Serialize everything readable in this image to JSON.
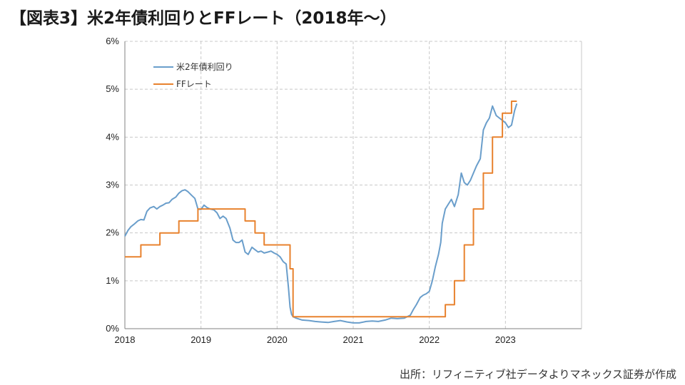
{
  "title": "【図表3】米2年債利回りとFFレート（2018年〜）",
  "source": "出所：リフィニティブ社データよりマネックス証券が作成",
  "colors": {
    "us2y": "#6a9ecb",
    "ff": "#e8822e",
    "grid": "#c8c8c8",
    "axis": "#808080"
  },
  "chart_data": {
    "type": "line",
    "title": "米2年債利回りとFFレート（2018年〜）",
    "xlabel": "",
    "ylabel": "",
    "xlim": [
      2018.0,
      2024.0
    ],
    "ylim": [
      0,
      6
    ],
    "x_ticks": [
      {
        "value": 2018,
        "label": "2018"
      },
      {
        "value": 2019,
        "label": "2019"
      },
      {
        "value": 2020,
        "label": "2020"
      },
      {
        "value": 2021,
        "label": "2021"
      },
      {
        "value": 2022,
        "label": "2022"
      },
      {
        "value": 2023,
        "label": "2023"
      }
    ],
    "y_ticks": [
      {
        "value": 0,
        "label": "0%"
      },
      {
        "value": 1,
        "label": "1%"
      },
      {
        "value": 2,
        "label": "2%"
      },
      {
        "value": 3,
        "label": "3%"
      },
      {
        "value": 4,
        "label": "4%"
      },
      {
        "value": 5,
        "label": "5%"
      },
      {
        "value": 6,
        "label": "6%"
      }
    ],
    "grid": true,
    "legend": "top-left",
    "series": [
      {
        "name": "米2年債利回り",
        "style": "line",
        "points": [
          [
            2018.0,
            1.93
          ],
          [
            2018.04,
            2.05
          ],
          [
            2018.08,
            2.13
          ],
          [
            2018.12,
            2.18
          ],
          [
            2018.17,
            2.25
          ],
          [
            2018.21,
            2.28
          ],
          [
            2018.25,
            2.27
          ],
          [
            2018.29,
            2.45
          ],
          [
            2018.33,
            2.52
          ],
          [
            2018.38,
            2.55
          ],
          [
            2018.42,
            2.5
          ],
          [
            2018.46,
            2.55
          ],
          [
            2018.5,
            2.58
          ],
          [
            2018.54,
            2.62
          ],
          [
            2018.58,
            2.63
          ],
          [
            2018.62,
            2.7
          ],
          [
            2018.67,
            2.75
          ],
          [
            2018.71,
            2.83
          ],
          [
            2018.75,
            2.88
          ],
          [
            2018.79,
            2.9
          ],
          [
            2018.83,
            2.86
          ],
          [
            2018.88,
            2.78
          ],
          [
            2018.92,
            2.72
          ],
          [
            2018.96,
            2.5
          ],
          [
            2019.0,
            2.49
          ],
          [
            2019.04,
            2.58
          ],
          [
            2019.08,
            2.53
          ],
          [
            2019.12,
            2.5
          ],
          [
            2019.17,
            2.48
          ],
          [
            2019.21,
            2.42
          ],
          [
            2019.25,
            2.3
          ],
          [
            2019.29,
            2.35
          ],
          [
            2019.33,
            2.3
          ],
          [
            2019.38,
            2.1
          ],
          [
            2019.42,
            1.85
          ],
          [
            2019.46,
            1.8
          ],
          [
            2019.5,
            1.8
          ],
          [
            2019.54,
            1.85
          ],
          [
            2019.58,
            1.6
          ],
          [
            2019.62,
            1.55
          ],
          [
            2019.67,
            1.7
          ],
          [
            2019.71,
            1.65
          ],
          [
            2019.75,
            1.6
          ],
          [
            2019.79,
            1.62
          ],
          [
            2019.83,
            1.58
          ],
          [
            2019.88,
            1.6
          ],
          [
            2019.92,
            1.62
          ],
          [
            2019.96,
            1.58
          ],
          [
            2020.0,
            1.55
          ],
          [
            2020.04,
            1.5
          ],
          [
            2020.08,
            1.4
          ],
          [
            2020.12,
            1.35
          ],
          [
            2020.15,
            0.85
          ],
          [
            2020.17,
            0.45
          ],
          [
            2020.19,
            0.3
          ],
          [
            2020.21,
            0.25
          ],
          [
            2020.25,
            0.22
          ],
          [
            2020.33,
            0.18
          ],
          [
            2020.42,
            0.17
          ],
          [
            2020.5,
            0.15
          ],
          [
            2020.58,
            0.14
          ],
          [
            2020.67,
            0.13
          ],
          [
            2020.75,
            0.15
          ],
          [
            2020.83,
            0.17
          ],
          [
            2020.92,
            0.14
          ],
          [
            2021.0,
            0.12
          ],
          [
            2021.08,
            0.12
          ],
          [
            2021.17,
            0.15
          ],
          [
            2021.25,
            0.16
          ],
          [
            2021.33,
            0.15
          ],
          [
            2021.42,
            0.18
          ],
          [
            2021.5,
            0.22
          ],
          [
            2021.58,
            0.21
          ],
          [
            2021.67,
            0.22
          ],
          [
            2021.75,
            0.28
          ],
          [
            2021.79,
            0.4
          ],
          [
            2021.83,
            0.5
          ],
          [
            2021.88,
            0.65
          ],
          [
            2021.92,
            0.7
          ],
          [
            2021.96,
            0.73
          ],
          [
            2022.0,
            0.78
          ],
          [
            2022.04,
            1.0
          ],
          [
            2022.08,
            1.3
          ],
          [
            2022.12,
            1.55
          ],
          [
            2022.15,
            1.8
          ],
          [
            2022.17,
            2.2
          ],
          [
            2022.21,
            2.5
          ],
          [
            2022.25,
            2.6
          ],
          [
            2022.29,
            2.7
          ],
          [
            2022.33,
            2.55
          ],
          [
            2022.38,
            2.8
          ],
          [
            2022.42,
            3.25
          ],
          [
            2022.46,
            3.05
          ],
          [
            2022.5,
            3.0
          ],
          [
            2022.54,
            3.1
          ],
          [
            2022.58,
            3.25
          ],
          [
            2022.62,
            3.4
          ],
          [
            2022.67,
            3.55
          ],
          [
            2022.71,
            4.15
          ],
          [
            2022.75,
            4.3
          ],
          [
            2022.79,
            4.4
          ],
          [
            2022.83,
            4.65
          ],
          [
            2022.88,
            4.45
          ],
          [
            2022.92,
            4.4
          ],
          [
            2022.96,
            4.35
          ],
          [
            2023.0,
            4.3
          ],
          [
            2023.04,
            4.2
          ],
          [
            2023.08,
            4.25
          ],
          [
            2023.12,
            4.55
          ],
          [
            2023.15,
            4.7
          ]
        ]
      },
      {
        "name": "FFレート",
        "style": "step",
        "points": [
          [
            2018.0,
            1.5
          ],
          [
            2018.21,
            1.75
          ],
          [
            2018.46,
            2.0
          ],
          [
            2018.71,
            2.25
          ],
          [
            2018.96,
            2.5
          ],
          [
            2019.58,
            2.25
          ],
          [
            2019.71,
            2.0
          ],
          [
            2019.83,
            1.75
          ],
          [
            2020.17,
            1.25
          ],
          [
            2020.21,
            0.25
          ],
          [
            2022.21,
            0.5
          ],
          [
            2022.33,
            1.0
          ],
          [
            2022.46,
            1.75
          ],
          [
            2022.58,
            2.5
          ],
          [
            2022.71,
            3.25
          ],
          [
            2022.83,
            4.0
          ],
          [
            2022.96,
            4.5
          ],
          [
            2023.08,
            4.75
          ],
          [
            2023.15,
            4.75
          ]
        ]
      }
    ]
  }
}
